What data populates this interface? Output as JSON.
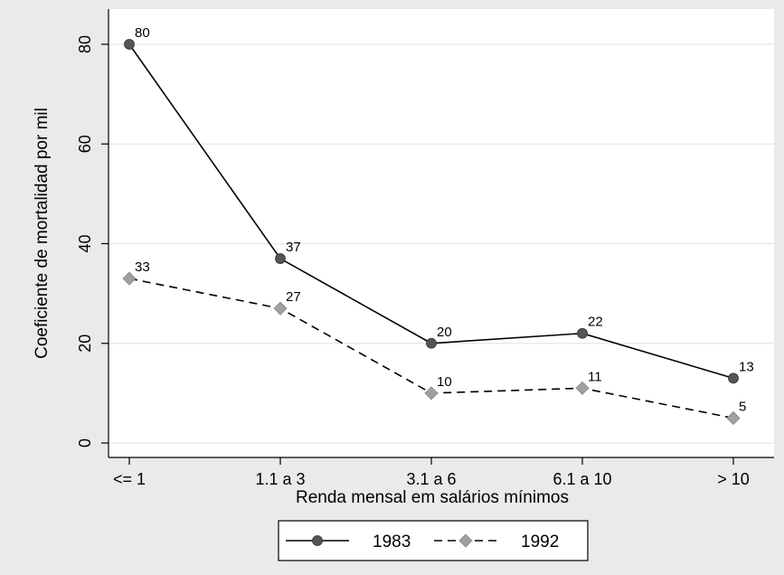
{
  "chart_data": {
    "type": "line",
    "title": "",
    "xlabel": "Renda mensal em salários mínimos",
    "ylabel": "Coeficiente de mortalidad por mil",
    "categories": [
      "<= 1",
      "1.1 a 3",
      "3.1 a 6",
      "6.1 a 10",
      "> 10"
    ],
    "ylim": [
      0,
      80
    ],
    "yticks": [
      0,
      20,
      40,
      60,
      80
    ],
    "grid": true,
    "legend_position": "bottom",
    "series": [
      {
        "name": "1983",
        "values": [
          80,
          37,
          20,
          22,
          13
        ],
        "labels": [
          "80",
          "37",
          "20",
          "22",
          "13"
        ],
        "color": "#000000",
        "marker": "circle",
        "marker_color": "#555555",
        "dash": "solid"
      },
      {
        "name": "1992",
        "values": [
          33,
          27,
          10,
          11,
          5
        ],
        "labels": [
          "33",
          "27",
          "10",
          "11",
          "5"
        ],
        "color": "#000000",
        "marker": "diamond",
        "marker_color": "#a0a0a0",
        "dash": "dashed"
      }
    ]
  }
}
